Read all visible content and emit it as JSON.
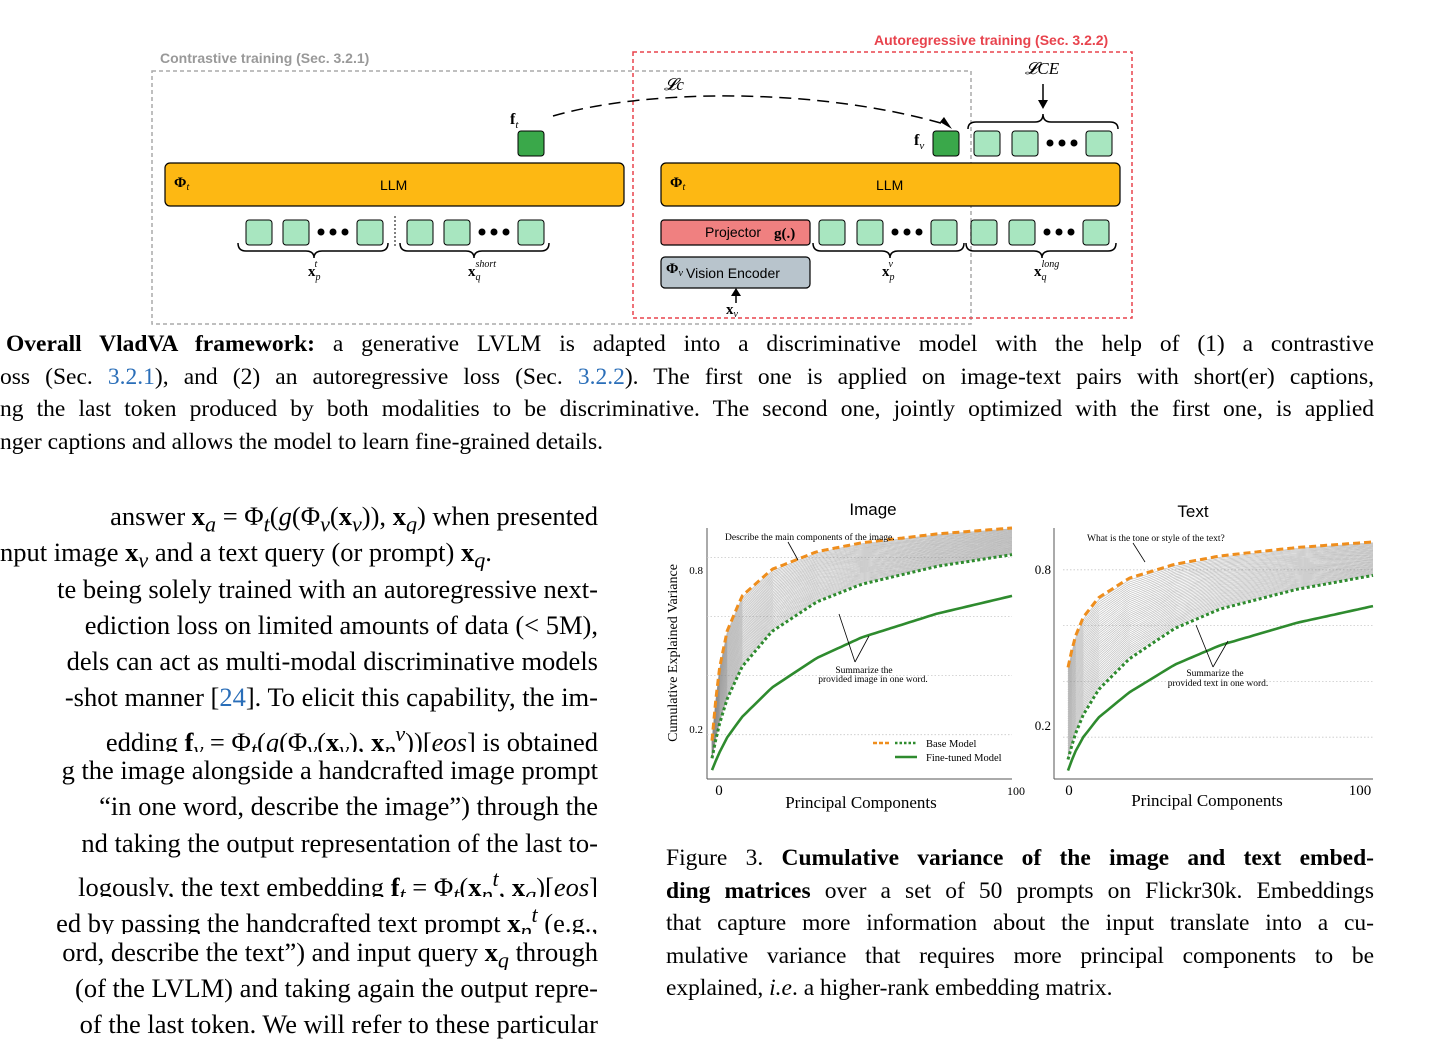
{
  "figure2": {
    "contrastive_label": "Contrastive training (Sec. 3.2.1)",
    "autoregressive_label": "Autoregressive training (Sec. 3.2.2)",
    "loss_c": "𝓛c",
    "loss_ce": "𝓛CE",
    "f_t": "f",
    "f_t_sub": "t",
    "f_v": "f",
    "f_v_sub": "v",
    "phi_t_left": "Φt",
    "phi_t_right": "Φt",
    "llm_left": "LLM",
    "llm_right": "LLM",
    "projector": "Projector",
    "projector_fn": "g(.)",
    "phi_v": "Φv",
    "vision_encoder": "Vision Encoder",
    "x_p_t": "x",
    "x_q_short": "x",
    "x_p_v": "x",
    "x_q_long": "x",
    "x_v": "x"
  },
  "caption2": {
    "lines": [
      {
        "bold": "Overall VladVA framework:",
        "text": " a generative LVLM is adapted into a discriminative model with the help of (1) a contrastive"
      },
      {
        "text_a": "oss (Sec. ",
        "ref1": "3.2.1",
        "text_b": "), and (2) an autoregressive loss (Sec. ",
        "ref2": "3.2.2",
        "text_c": "). The first one is applied on image-text pairs with short(er) captions,"
      },
      {
        "text": "ng the last token produced by both modalities to be discriminative. The second one, jointly optimized with the first one, is applied"
      },
      {
        "text": "nger captions and allows the model to learn fine-grained details."
      }
    ]
  },
  "body": {
    "l1_a": "answer ",
    "l1_b": " when presented",
    "l2_a": "nput image ",
    "l2_b": " and a text query (or prompt) ",
    "l3": "te being solely trained with an autoregressive next-",
    "l4": "ediction loss on limited amounts of data (< 5M),",
    "l5": "dels can act as multi-modal discriminative models",
    "l6_a": "-shot manner [",
    "l6_ref": "24",
    "l6_b": "]. To elicit this capability, the im-",
    "l7_a": "edding ",
    "l7_b": " is obtained",
    "l8": "g the image alongside a handcrafted image prompt",
    "l9": "“in one word, describe the image”) through the",
    "l10": "nd taking the output representation of the last to-",
    "l11_a": "logously, the text embedding ",
    "l12_a": "ed by passing the handcrafted text prompt ",
    "l12_b": " (e.g.,",
    "l13_a": "ord, describe the text”) and input query ",
    "l13_b": " through",
    "l14": "(of the LVLM) and taking again the output repre-",
    "l15": "of the last token. We will refer to these particular"
  },
  "chart_data": [
    {
      "type": "line",
      "title": "Image",
      "xlabel": "Principal Components",
      "ylabel": "Cumulative Explained Variance",
      "xlim": [
        0,
        100
      ],
      "ylim": [
        0.05,
        0.9
      ],
      "xticks": [
        "0",
        "100"
      ],
      "yticks": [
        "0.2",
        "0.8"
      ],
      "grid": "horizontal dotted",
      "annotations": [
        "Describe the main components of the image.",
        "Summarize the",
        "provided image in one word."
      ],
      "legend_placement": "bottom-right",
      "legend": [
        "Base Model",
        "Fine-tuned Model"
      ],
      "series": [
        {
          "name": "Base Model",
          "style": "orange dashed",
          "x": [
            0,
            2,
            5,
            10,
            20,
            35,
            50,
            75,
            100
          ],
          "values": [
            0.18,
            0.4,
            0.55,
            0.67,
            0.76,
            0.82,
            0.85,
            0.88,
            0.9
          ]
        },
        {
          "name": "Base Model",
          "style": "green dotted",
          "x": [
            0,
            2,
            5,
            10,
            20,
            35,
            50,
            75,
            100
          ],
          "values": [
            0.12,
            0.22,
            0.32,
            0.43,
            0.55,
            0.65,
            0.71,
            0.77,
            0.81
          ]
        },
        {
          "name": "Fine-tuned Model",
          "style": "green solid",
          "x": [
            0,
            2,
            5,
            10,
            20,
            35,
            50,
            75,
            100
          ],
          "values": [
            0.08,
            0.13,
            0.19,
            0.26,
            0.36,
            0.46,
            0.53,
            0.61,
            0.67
          ]
        }
      ]
    },
    {
      "type": "line",
      "title": "Text",
      "xlabel": "Principal Components",
      "ylabel": "",
      "xlim": [
        0,
        100
      ],
      "ylim": [
        0.05,
        0.95
      ],
      "xticks": [
        "0",
        "100"
      ],
      "yticks": [
        "0.2",
        "0.8"
      ],
      "grid": "horizontal dotted",
      "annotations": [
        "What is the tone or style of the text?",
        "Summarize the",
        "provided text in one word."
      ],
      "series": [
        {
          "name": "Base Model",
          "style": "orange dashed",
          "x": [
            0,
            2,
            5,
            10,
            20,
            35,
            50,
            75,
            100
          ],
          "values": [
            0.45,
            0.55,
            0.63,
            0.7,
            0.77,
            0.82,
            0.85,
            0.88,
            0.9
          ]
        },
        {
          "name": "Base Model",
          "style": "green dotted",
          "x": [
            0,
            2,
            5,
            10,
            20,
            35,
            50,
            75,
            100
          ],
          "values": [
            0.12,
            0.2,
            0.28,
            0.37,
            0.48,
            0.59,
            0.66,
            0.73,
            0.78
          ]
        },
        {
          "name": "Fine-tuned Model",
          "style": "green solid",
          "x": [
            0,
            2,
            5,
            10,
            20,
            35,
            50,
            75,
            100
          ],
          "values": [
            0.08,
            0.14,
            0.2,
            0.27,
            0.36,
            0.46,
            0.53,
            0.61,
            0.67
          ]
        }
      ]
    }
  ],
  "caption3": {
    "prefix": "Figure 3. ",
    "bold1": "Cumulative variance of the image and text embed-",
    "bold2": "ding matrices",
    "rest2": " over a set of 50 prompts on Flickr30k. Embeddings",
    "l3": "that capture more information about the input translate into a cu-",
    "l4": "mulative variance that requires more principal components to be",
    "l5_a": "explained, ",
    "l5_i": "i.e",
    "l5_b": ". a higher-rank embedding matrix."
  }
}
